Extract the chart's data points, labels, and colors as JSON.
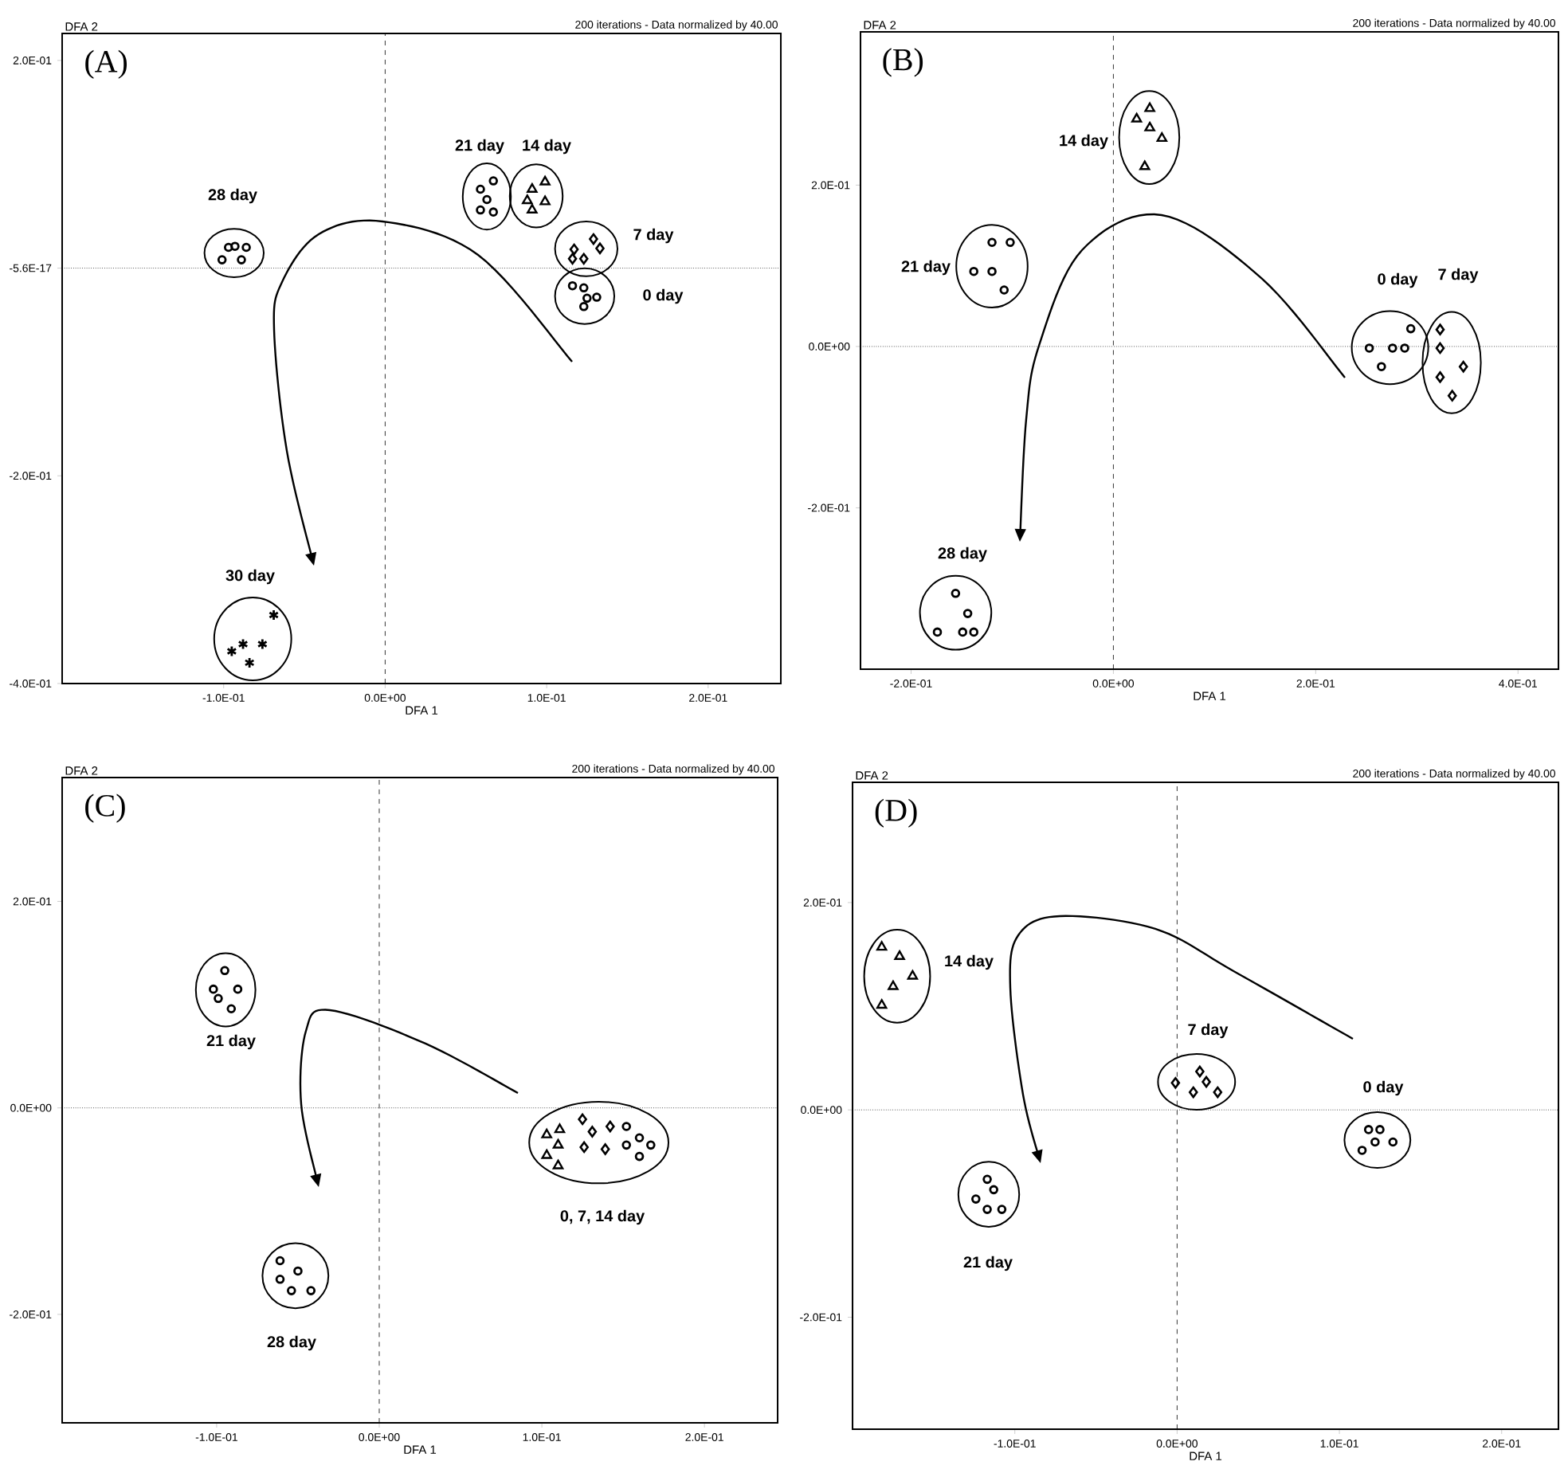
{
  "chart_data": [
    {
      "type": "scatter",
      "title": "(A)",
      "subtitle": "200 iterations - Data normalized by 40.00",
      "xlabel": "DFA 1",
      "ylabel": "DFA 2",
      "xlim": [
        -0.2,
        0.245
      ],
      "ylim": [
        -0.4,
        0.226
      ],
      "xticks": [
        {
          "value": -0.1,
          "label": "-1.0E-01"
        },
        {
          "value": 0,
          "label": "0.0E+00"
        },
        {
          "value": 0.1,
          "label": "1.0E-01"
        },
        {
          "value": 0.2,
          "label": "2.0E-01"
        }
      ],
      "yticks": [
        {
          "value": 0.2,
          "label": "2.0E-01"
        },
        {
          "value": 0,
          "label": "-5.6E-17"
        },
        {
          "value": -0.2,
          "label": "-2.0E-01"
        },
        {
          "value": -0.4,
          "label": "-4.0E-01"
        }
      ],
      "ref_lines": [
        {
          "axis": "x",
          "value": 0,
          "line_style": "dashed"
        },
        {
          "axis": "y",
          "value": 0,
          "line_style": "dotted"
        }
      ],
      "series": [
        {
          "name": "28 day",
          "color": "#000000",
          "marker": "circle",
          "x": [
            -0.101,
            -0.097,
            -0.093,
            -0.089,
            -0.086
          ],
          "values": [
            0.008,
            0.02,
            0.021,
            0.008,
            0.02
          ]
        },
        {
          "name": "21 day",
          "color": "#000000",
          "marker": "circle",
          "x": [
            0.059,
            0.067,
            0.063,
            0.059,
            0.067
          ],
          "values": [
            0.076,
            0.084,
            0.066,
            0.056,
            0.054
          ]
        },
        {
          "name": "14 day",
          "color": "#000000",
          "marker": "triangle",
          "x": [
            0.091,
            0.099,
            0.088,
            0.099,
            0.091
          ],
          "values": [
            0.076,
            0.083,
            0.065,
            0.064,
            0.056
          ]
        },
        {
          "name": "7 day",
          "color": "#000000",
          "marker": "diamond",
          "x": [
            0.117,
            0.129,
            0.133,
            0.123,
            0.116
          ],
          "values": [
            0.018,
            0.028,
            0.019,
            0.009,
            0.009
          ]
        },
        {
          "name": "0 day",
          "color": "#000000",
          "marker": "circle",
          "x": [
            0.116,
            0.123,
            0.125,
            0.123,
            0.131
          ],
          "values": [
            -0.017,
            -0.019,
            -0.029,
            -0.037,
            -0.028
          ]
        },
        {
          "name": "30 day",
          "color": "#000000",
          "marker": "cross",
          "x": [
            -0.069,
            -0.076,
            -0.088,
            -0.095,
            -0.084
          ],
          "values": [
            -0.334,
            -0.362,
            -0.362,
            -0.369,
            -0.38
          ]
        }
      ]
    },
    {
      "type": "scatter",
      "title": "(B)",
      "subtitle": "200 iterations - Data normalized by 40.00",
      "xlabel": "DFA 1",
      "ylabel": "DFA 2",
      "xlim": [
        -0.25,
        0.44
      ],
      "ylim": [
        -0.4,
        0.39
      ],
      "xticks": [
        {
          "value": -0.2,
          "label": "-2.0E-01"
        },
        {
          "value": 0,
          "label": "0.0E+00"
        },
        {
          "value": 0.2,
          "label": "2.0E-01"
        },
        {
          "value": 0.4,
          "label": "4.0E-01"
        }
      ],
      "yticks": [
        {
          "value": 0.2,
          "label": "2.0E-01"
        },
        {
          "value": 0,
          "label": "0.0E+00"
        },
        {
          "value": -0.2,
          "label": "-2.0E-01"
        }
      ],
      "ref_lines": [
        {
          "axis": "x",
          "value": 0,
          "line_style": "dashed"
        },
        {
          "axis": "y",
          "value": 0,
          "line_style": "dotted"
        }
      ],
      "series": [
        {
          "name": "14 day",
          "color": "#000000",
          "marker": "triangle",
          "x": [
            0.023,
            0.036,
            0.036,
            0.048,
            0.031
          ],
          "values": [
            0.282,
            0.295,
            0.271,
            0.258,
            0.223
          ]
        },
        {
          "name": "21 day",
          "color": "#000000",
          "marker": "circle",
          "x": [
            -0.12,
            -0.102,
            -0.138,
            -0.12,
            -0.108
          ],
          "values": [
            0.129,
            0.129,
            0.093,
            0.093,
            0.07
          ]
        },
        {
          "name": "0 day",
          "color": "#000000",
          "marker": "circle",
          "x": [
            0.253,
            0.276,
            0.288,
            0.294,
            0.265
          ],
          "values": [
            -0.002,
            -0.002,
            -0.002,
            0.022,
            -0.025
          ]
        },
        {
          "name": "7 day",
          "color": "#000000",
          "marker": "diamond",
          "x": [
            0.323,
            0.323,
            0.323,
            0.346,
            0.335
          ],
          "values": [
            0.021,
            -0.002,
            -0.038,
            -0.025,
            -0.061
          ]
        },
        {
          "name": "28 day",
          "color": "#000000",
          "marker": "circle",
          "x": [
            -0.156,
            -0.144,
            -0.174,
            -0.149,
            -0.138
          ],
          "values": [
            -0.306,
            -0.331,
            -0.354,
            -0.354,
            -0.354
          ]
        }
      ]
    },
    {
      "type": "scatter",
      "title": "(C)",
      "subtitle": "200 iterations - Data normalized by 40.00",
      "xlabel": "DFA 1",
      "ylabel": "DFA 2",
      "xlim": [
        -0.195,
        0.245
      ],
      "ylim": [
        -0.305,
        0.32
      ],
      "xticks": [
        {
          "value": -0.1,
          "label": "-1.0E-01"
        },
        {
          "value": 0,
          "label": "0.0E+00"
        },
        {
          "value": 0.1,
          "label": "1.0E-01"
        },
        {
          "value": 0.2,
          "label": "2.0E-01"
        }
      ],
      "yticks": [
        {
          "value": 0.2,
          "label": "2.0E-01"
        },
        {
          "value": 0,
          "label": "0.0E+00"
        },
        {
          "value": -0.2,
          "label": "-2.0E-01"
        }
      ],
      "ref_lines": [
        {
          "axis": "x",
          "value": 0,
          "line_style": "dashed"
        },
        {
          "axis": "y",
          "value": 0,
          "line_style": "dotted"
        }
      ],
      "annotations": [
        "0, 7, 14 day"
      ],
      "series": [
        {
          "name": "21 day",
          "color": "#000000",
          "marker": "circle",
          "x": [
            -0.095,
            -0.102,
            -0.099,
            -0.087,
            -0.091
          ],
          "values": [
            0.133,
            0.115,
            0.106,
            0.115,
            0.096
          ]
        },
        {
          "name": "28 day",
          "color": "#000000",
          "marker": "circle",
          "x": [
            -0.061,
            -0.05,
            -0.061,
            -0.054,
            -0.042
          ],
          "values": [
            -0.148,
            -0.158,
            -0.166,
            -0.177,
            -0.177
          ]
        },
        {
          "color": "#000000",
          "marker": "triangle",
          "x": [
            0.103,
            0.111,
            0.11,
            0.103,
            0.11
          ],
          "values": [
            -0.026,
            -0.021,
            -0.036,
            -0.046,
            -0.056
          ]
        },
        {
          "color": "#000000",
          "marker": "diamond",
          "x": [
            0.125,
            0.131,
            0.142,
            0.126,
            0.139
          ],
          "values": [
            -0.011,
            -0.023,
            -0.018,
            -0.038,
            -0.04
          ]
        },
        {
          "color": "#000000",
          "marker": "circle",
          "x": [
            0.152,
            0.152,
            0.16,
            0.16,
            0.167
          ],
          "values": [
            -0.018,
            -0.036,
            -0.029,
            -0.047,
            -0.036
          ]
        }
      ]
    },
    {
      "type": "scatter",
      "title": "(D)",
      "subtitle": "200 iterations - Data normalized by 40.00",
      "xlabel": "DFA 1",
      "ylabel": "DFA 2",
      "xlim": [
        -0.2,
        0.235
      ],
      "ylim": [
        -0.308,
        0.316
      ],
      "xticks": [
        {
          "value": -0.1,
          "label": "-1.0E-01"
        },
        {
          "value": 0,
          "label": "0.0E+00"
        },
        {
          "value": 0.1,
          "label": "1.0E-01"
        },
        {
          "value": 0.2,
          "label": "2.0E-01"
        }
      ],
      "yticks": [
        {
          "value": 0.2,
          "label": "2.0E-01"
        },
        {
          "value": 0,
          "label": "0.0E+00"
        },
        {
          "value": -0.2,
          "label": "-2.0E-01"
        }
      ],
      "ref_lines": [
        {
          "axis": "x",
          "value": 0,
          "line_style": "dashed"
        },
        {
          "axis": "y",
          "value": 0,
          "line_style": "dotted"
        }
      ],
      "series": [
        {
          "name": "14 day",
          "color": "#000000",
          "marker": "triangle",
          "x": [
            -0.182,
            -0.171,
            -0.163,
            -0.175,
            -0.182
          ],
          "values": [
            0.157,
            0.148,
            0.129,
            0.119,
            0.101
          ]
        },
        {
          "name": "7 day",
          "color": "#000000",
          "marker": "diamond",
          "x": [
            -0.001,
            0.014,
            0.01,
            0.018,
            0.025
          ],
          "values": [
            0.026,
            0.037,
            0.017,
            0.027,
            0.017
          ]
        },
        {
          "name": "0 day",
          "color": "#000000",
          "marker": "circle",
          "x": [
            0.118,
            0.125,
            0.122,
            0.114,
            0.133
          ],
          "values": [
            -0.019,
            -0.019,
            -0.031,
            -0.039,
            -0.031
          ]
        },
        {
          "name": "21 day",
          "color": "#000000",
          "marker": "circle",
          "x": [
            -0.117,
            -0.113,
            -0.124,
            -0.117,
            -0.108
          ],
          "values": [
            -0.067,
            -0.077,
            -0.086,
            -0.096,
            -0.096
          ]
        }
      ]
    }
  ]
}
